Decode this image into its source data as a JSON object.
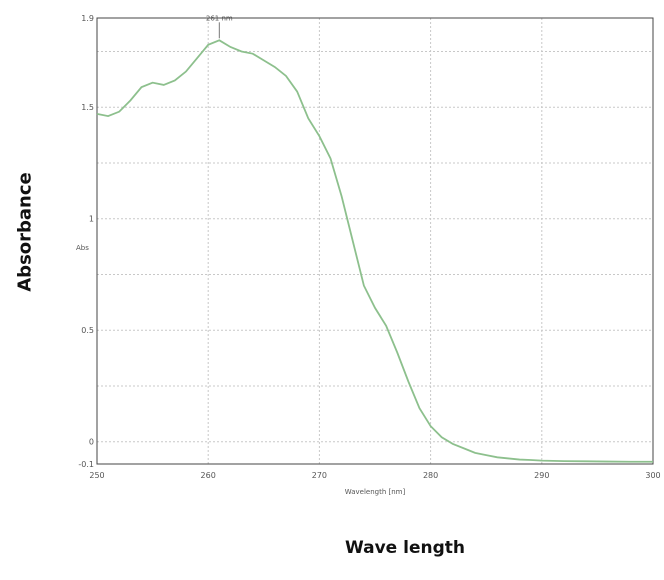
{
  "outer_labels": {
    "y": "Absorbance",
    "x": "Wave length"
  },
  "chart_data": {
    "type": "line",
    "xlabel": "Wavelength [nm]",
    "ylabel": "Abs",
    "xlim": [
      250,
      300
    ],
    "ylim": [
      -0.1,
      1.9
    ],
    "x_ticks": [
      "250",
      "260",
      "270",
      "280",
      "290",
      "300"
    ],
    "y_ticks": [
      {
        "value": 1.9,
        "label": "1.9"
      },
      {
        "value": 1.5,
        "label": "1.5"
      },
      {
        "value": 1.0,
        "label": "1"
      },
      {
        "value": 0.5,
        "label": "0.5"
      },
      {
        "value": 0.0,
        "label": "0"
      },
      {
        "value": -0.1,
        "label": "-0.1"
      }
    ],
    "grid": true,
    "line_color": "#8dc08d",
    "annotation": {
      "label": "261 nm",
      "x": 261,
      "y": 1.8
    },
    "series": [
      {
        "x": [
          250,
          251,
          252,
          253,
          254,
          255,
          256,
          257,
          258,
          259,
          260,
          261,
          262,
          263,
          264,
          265,
          266,
          267,
          268,
          269,
          270,
          271,
          272,
          273,
          274,
          275,
          276,
          277,
          278,
          279,
          280,
          281,
          282,
          283,
          284,
          285,
          286,
          287,
          288,
          289,
          290,
          292,
          294,
          296,
          298,
          300
        ],
        "y": [
          1.47,
          1.46,
          1.48,
          1.53,
          1.59,
          1.61,
          1.6,
          1.62,
          1.66,
          1.72,
          1.78,
          1.8,
          1.77,
          1.75,
          1.74,
          1.71,
          1.68,
          1.64,
          1.57,
          1.45,
          1.37,
          1.27,
          1.1,
          0.9,
          0.7,
          0.6,
          0.52,
          0.4,
          0.27,
          0.15,
          0.07,
          0.02,
          -0.01,
          -0.03,
          -0.05,
          -0.06,
          -0.07,
          -0.075,
          -0.08,
          -0.082,
          -0.085,
          -0.087,
          -0.088,
          -0.089,
          -0.09,
          -0.09
        ]
      }
    ]
  }
}
